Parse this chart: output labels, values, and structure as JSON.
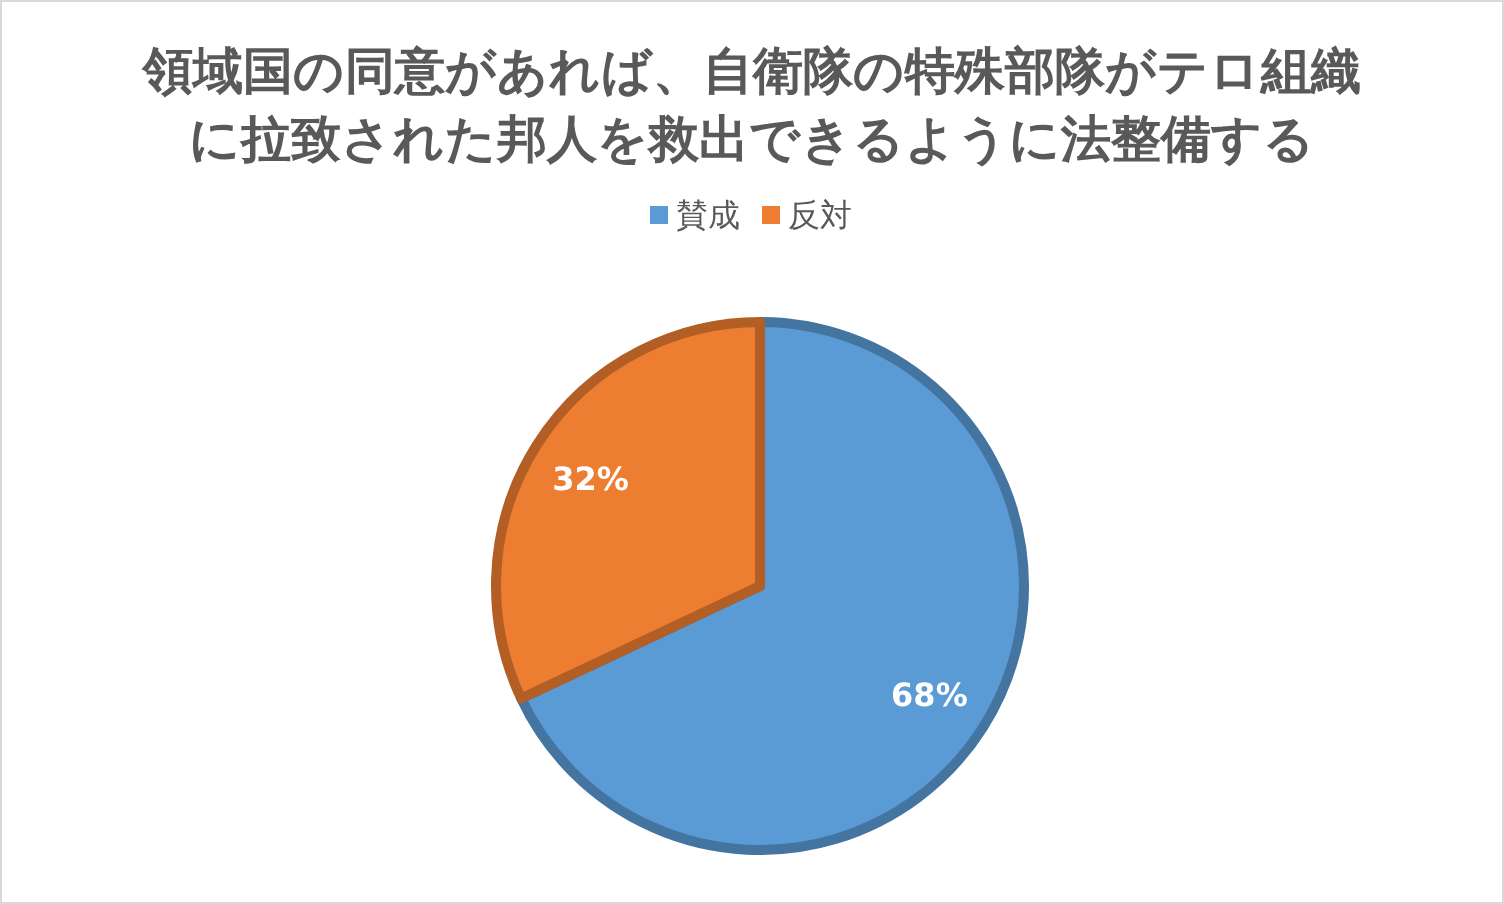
{
  "chart_data": {
    "type": "pie",
    "title": "領域国の同意があれば、自衛隊の特殊部隊がテロ組織に拉致された邦人を救出できるように法整備する",
    "categories": [
      "賛成",
      "反対"
    ],
    "values": [
      68,
      32
    ],
    "colors": [
      "#5b9bd5",
      "#ed7d31"
    ],
    "value_labels": [
      "68%",
      "32%"
    ],
    "legend": "top"
  }
}
